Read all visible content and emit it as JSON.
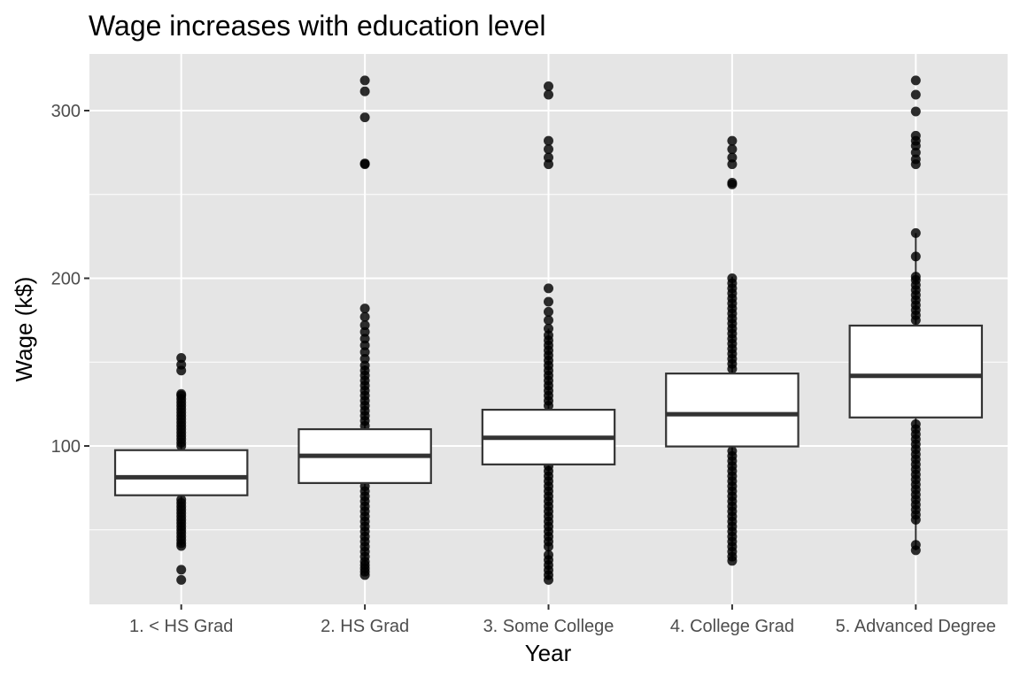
{
  "chart_data": {
    "type": "box",
    "title": "Wage increases with education level",
    "xlabel": "Year",
    "ylabel": "Wage (k$)",
    "ylim": [
      5,
      330
    ],
    "yticks": [
      100,
      200,
      300
    ],
    "grid": true,
    "legend": "none",
    "categories": [
      "1. < HS Grad",
      "2. HS Grad",
      "3. Some College",
      "4. College Grad",
      "5. Advanced Degree"
    ],
    "boxes": [
      {
        "category": "1. < HS Grad",
        "q1": 70.6,
        "median": 81.3,
        "q3": 97.5,
        "whisker_low": 40.4,
        "whisker_high": 131.0,
        "outliers": [
          20.1,
          26.2,
          40.4,
          42.0,
          44.0,
          46.0,
          48.0,
          50.0,
          52.0,
          54.0,
          56.0,
          58.0,
          60.0,
          62.0,
          64.0,
          66.0,
          68.0,
          100.0,
          102.0,
          104.0,
          106.0,
          108.0,
          110.0,
          112.0,
          114.0,
          116.0,
          118.0,
          120.0,
          122.0,
          124.0,
          126.0,
          128.0,
          130.0,
          131.0,
          145.0,
          148.5,
          152.5
        ]
      },
      {
        "category": "2. HS Grad",
        "q1": 77.9,
        "median": 94.1,
        "q3": 110.0,
        "whisker_low": 23.0,
        "whisker_high": 148.0,
        "outliers": [
          23.0,
          25.0,
          27.0,
          29.0,
          31.0,
          34.0,
          37.0,
          40.0,
          43.0,
          46.0,
          49.0,
          52.0,
          55.0,
          58.0,
          61.0,
          64.0,
          67.0,
          70.0,
          73.0,
          76.0,
          112.0,
          115.0,
          118.0,
          121.0,
          124.0,
          127.0,
          130.0,
          133.0,
          136.0,
          139.0,
          142.0,
          145.0,
          148.0,
          152.0,
          156.0,
          160.0,
          164.0,
          168.0,
          172.0,
          177.0,
          182.0,
          268.0,
          268.5,
          296.0,
          311.5,
          318.0
        ]
      },
      {
        "category": "3. Some College",
        "q1": 89.0,
        "median": 104.9,
        "q3": 121.6,
        "whisker_low": 20.1,
        "whisker_high": 170.0,
        "outliers": [
          20.1,
          23.0,
          26.0,
          29.0,
          32.0,
          35.0,
          40.0,
          43.0,
          46.0,
          49.0,
          52.0,
          55.0,
          58.0,
          61.0,
          64.0,
          67.0,
          70.0,
          73.0,
          76.0,
          79.0,
          82.0,
          85.0,
          88.0,
          124.0,
          127.0,
          130.0,
          133.0,
          136.0,
          139.0,
          142.0,
          145.0,
          148.0,
          151.0,
          154.0,
          157.0,
          160.0,
          163.0,
          166.0,
          170.0,
          175.0,
          180.0,
          186.0,
          194.0,
          268.0,
          272.0,
          277.0,
          282.0,
          309.5,
          314.5
        ]
      },
      {
        "category": "4. College Grad",
        "q1": 99.7,
        "median": 118.9,
        "q3": 143.2,
        "whisker_low": 31.5,
        "whisker_high": 201.0,
        "outliers": [
          31.5,
          34.0,
          37.0,
          40.0,
          43.0,
          46.0,
          49.0,
          52.0,
          55.0,
          58.0,
          61.0,
          64.0,
          67.0,
          70.0,
          73.0,
          76.0,
          79.0,
          82.0,
          85.0,
          88.0,
          91.0,
          94.0,
          97.0,
          146.0,
          149.0,
          152.0,
          155.0,
          158.0,
          161.0,
          164.0,
          167.0,
          170.0,
          173.0,
          176.0,
          179.0,
          182.0,
          185.0,
          188.0,
          191.0,
          194.0,
          197.0,
          200.0,
          256.0,
          257.0,
          268.0,
          272.0,
          277.0,
          282.0
        ]
      },
      {
        "category": "5. Advanced Degree",
        "q1": 117.0,
        "median": 141.8,
        "q3": 171.8,
        "whisker_low": 37.8,
        "whisker_high": 227.0,
        "outliers": [
          37.8,
          41.0,
          56.0,
          59.0,
          62.0,
          65.0,
          68.0,
          71.0,
          74.0,
          77.0,
          80.0,
          83.0,
          86.0,
          89.0,
          92.0,
          95.0,
          98.0,
          101.0,
          104.0,
          107.0,
          110.0,
          113.0,
          175.0,
          178.0,
          181.0,
          184.0,
          187.0,
          190.0,
          193.0,
          196.0,
          199.0,
          201.0,
          213.0,
          227.0,
          268.0,
          271.0,
          275.0,
          279.0,
          282.0,
          285.0,
          299.5,
          309.5,
          318.0
        ]
      }
    ]
  }
}
